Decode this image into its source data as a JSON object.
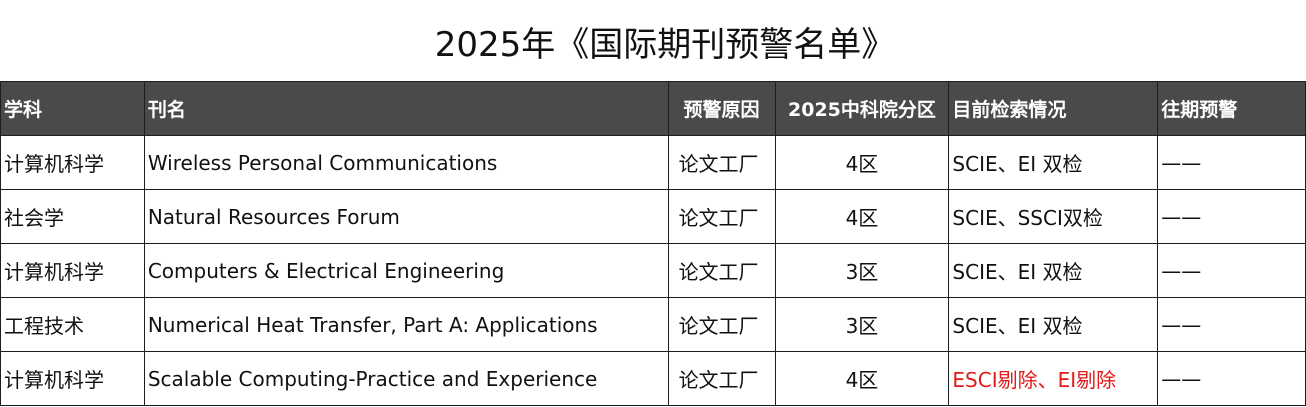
{
  "title": "2025年《国际期刊预警名单》",
  "headers": {
    "subject": "学科",
    "journal": "刊名",
    "reason": "预警原因",
    "zone": "2025中科院分区",
    "index_status": "目前检索情况",
    "past_warning": "往期预警"
  },
  "rows": [
    {
      "subject": "计算机科学",
      "journal": "Wireless Personal Communications",
      "reason": "论文工厂",
      "zone": "4区",
      "index_status": "SCIE、EI 双检",
      "past_warning": "——"
    },
    {
      "subject": "社会学",
      "journal": "Natural Resources Forum",
      "reason": "论文工厂",
      "zone": "4区",
      "index_status": "SCIE、SSCI双检",
      "past_warning": "——"
    },
    {
      "subject": "计算机科学",
      "journal": "Computers & Electrical Engineering",
      "reason": "论文工厂",
      "zone": "3区",
      "index_status": "SCIE、EI 双检",
      "past_warning": "——"
    },
    {
      "subject": "工程技术",
      "journal": "Numerical Heat Transfer, Part A: Applications",
      "reason": "论文工厂",
      "zone": "3区",
      "index_status": "SCIE、EI 双检",
      "past_warning": "——"
    },
    {
      "subject": "计算机科学",
      "journal": "Scalable Computing-Practice and Experience",
      "reason": "论文工厂",
      "zone": "4区",
      "index_status": "ESCI剔除、EI剔除",
      "past_warning": "——"
    }
  ],
  "colors": {
    "header_bg": "#4a4a4a",
    "header_text": "#ffffff",
    "highlight_text": "#e21a1a",
    "border": "#1e1e1e"
  }
}
